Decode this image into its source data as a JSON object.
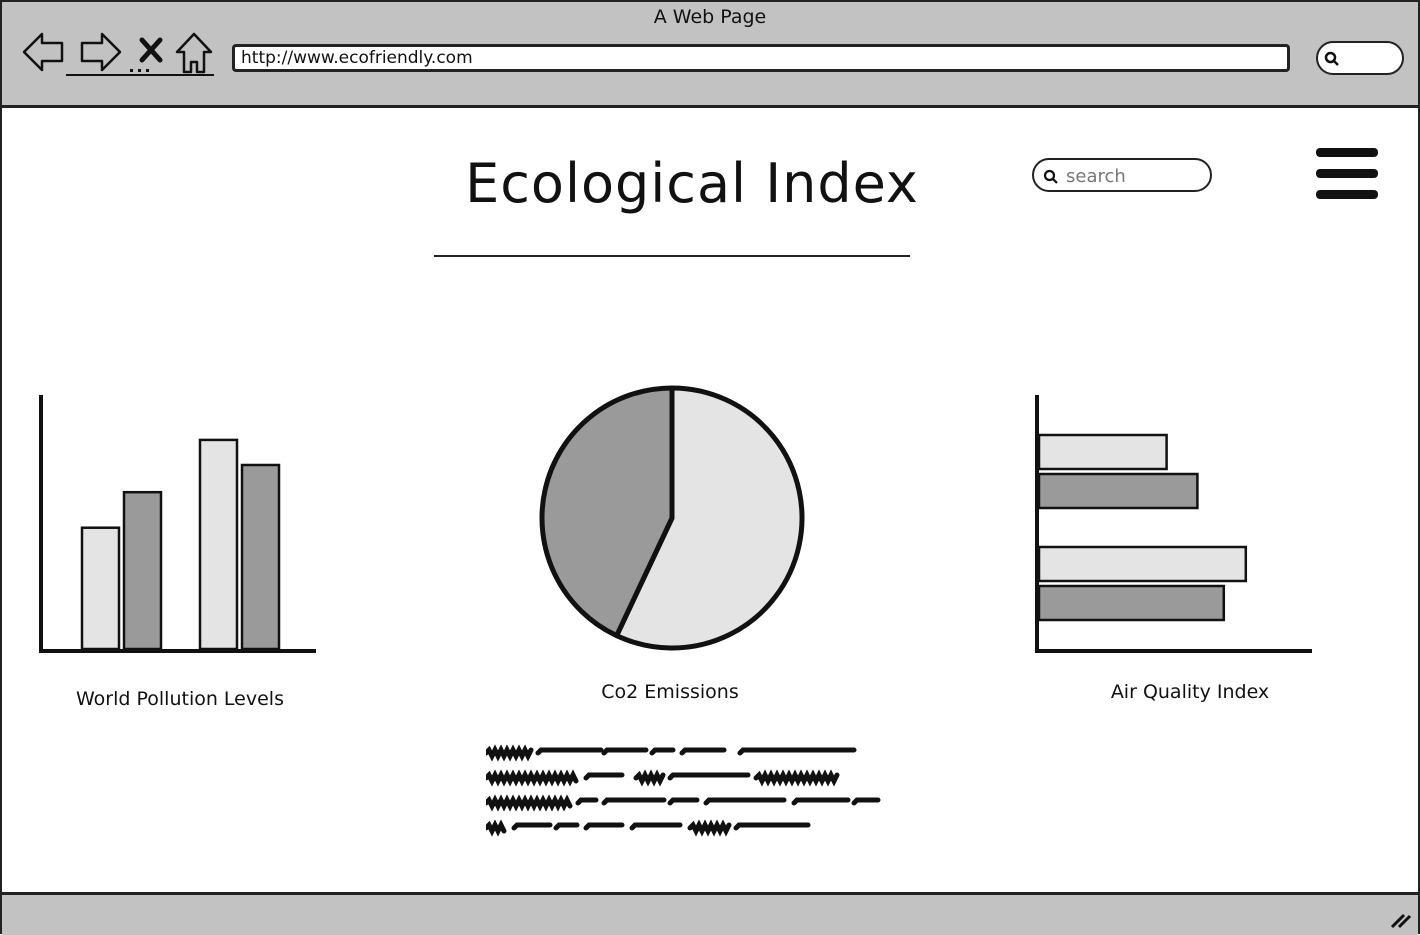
{
  "window": {
    "title": "A Web Page"
  },
  "browser": {
    "url": "http://www.ecofriendly.com",
    "nav_icons": [
      "back-arrow-icon",
      "forward-arrow-icon",
      "stop-icon",
      "home-icon"
    ]
  },
  "header": {
    "title": "Ecological Index",
    "search_placeholder": "search",
    "menu_icon": "hamburger-menu-icon"
  },
  "colors": {
    "chrome": "#c2c2c2",
    "light_series": "#e4e4e4",
    "dark_series": "#9a9a9a",
    "outline": "#111111"
  },
  "chart_data": [
    {
      "type": "bar",
      "title": "World Pollution Levels",
      "categories": [
        "",
        ""
      ],
      "series": [
        {
          "values": [
            58,
            100
          ]
        },
        {
          "values": [
            75,
            88
          ]
        }
      ],
      "ylim": [
        0,
        110
      ],
      "grid": false
    },
    {
      "type": "pie",
      "title": "Co2 Emissions",
      "slices": [
        {
          "value": 57
        },
        {
          "value": 43
        }
      ]
    },
    {
      "type": "bar",
      "orientation": "horizontal",
      "title": "Air Quality Index",
      "categories": [
        "",
        ""
      ],
      "series": [
        {
          "values": [
            58,
            94
          ]
        },
        {
          "values": [
            72,
            84
          ]
        }
      ],
      "xlim": [
        0,
        125
      ],
      "grid": false
    }
  ],
  "body_text_lines": 4
}
